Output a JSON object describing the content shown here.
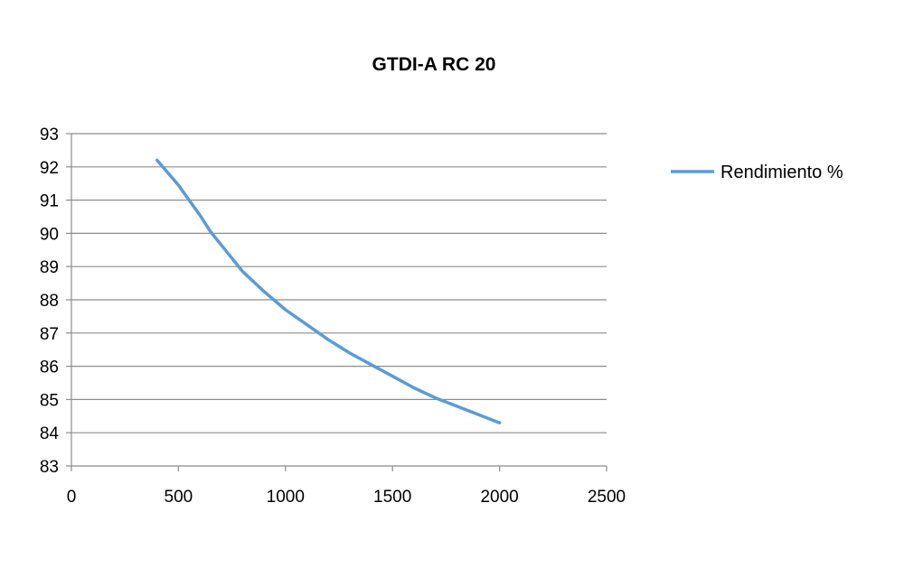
{
  "chart_data": {
    "type": "line",
    "title": "GTDI-A RC 20",
    "xlabel": "",
    "ylabel": "",
    "xlim": [
      0,
      2500
    ],
    "ylim": [
      83,
      93
    ],
    "xticks": [
      "0",
      "500",
      "1000",
      "1500",
      "2000",
      "2500"
    ],
    "yticks": [
      "83",
      "84",
      "85",
      "86",
      "87",
      "88",
      "89",
      "90",
      "91",
      "92",
      "93"
    ],
    "grid": true,
    "legend_position": "right",
    "series": [
      {
        "name": "Rendimiento %",
        "color": "#5b9bd5",
        "x": [
          400,
          500,
          550,
          600,
          650,
          700,
          750,
          800,
          900,
          1000,
          1100,
          1200,
          1300,
          1400,
          1500,
          1600,
          1700,
          1800,
          1900,
          2000
        ],
        "y": [
          92.2,
          91.45,
          91.0,
          90.55,
          90.05,
          89.65,
          89.25,
          88.85,
          88.25,
          87.7,
          87.25,
          86.8,
          86.4,
          86.05,
          85.7,
          85.35,
          85.05,
          84.8,
          84.55,
          84.3
        ]
      }
    ]
  }
}
